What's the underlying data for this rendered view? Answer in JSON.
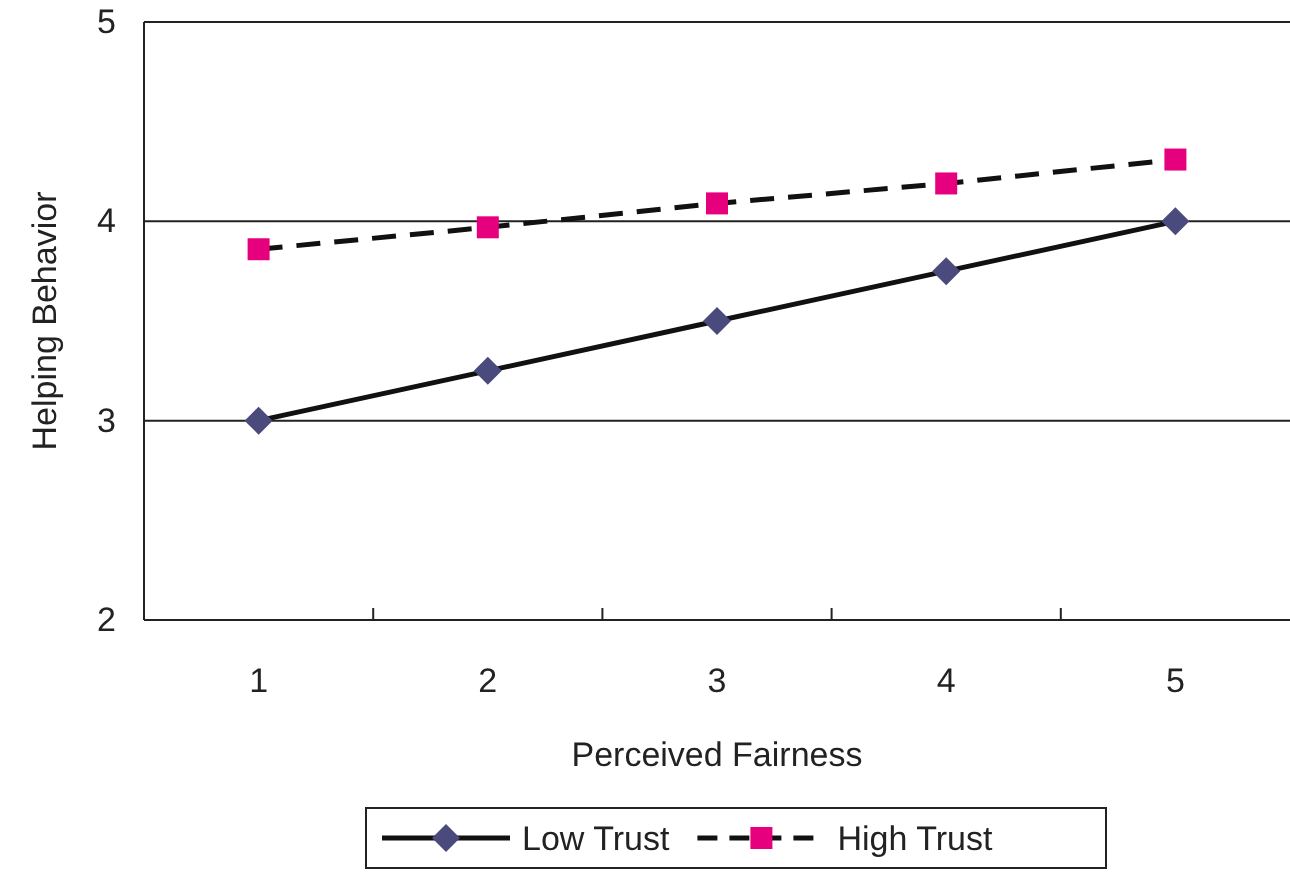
{
  "chart_data": {
    "type": "line",
    "xlabel": "Perceived Fairness",
    "ylabel": "Helping Behavior",
    "categories": [
      "1",
      "2",
      "3",
      "4",
      "5"
    ],
    "series": [
      {
        "name": "Low Trust",
        "color": "#4b4a7c",
        "marker": "diamond",
        "line_style": "solid",
        "values": [
          3.0,
          3.25,
          3.5,
          3.75,
          4.0
        ]
      },
      {
        "name": "High Trust",
        "color": "#e6007e",
        "marker": "square",
        "line_style": "dashed",
        "values": [
          3.86,
          3.97,
          4.09,
          4.19,
          4.31
        ]
      }
    ],
    "ylim": [
      2,
      5
    ],
    "yticks": [
      2,
      3,
      4,
      5
    ],
    "grid": "y",
    "legend": "bottom"
  }
}
